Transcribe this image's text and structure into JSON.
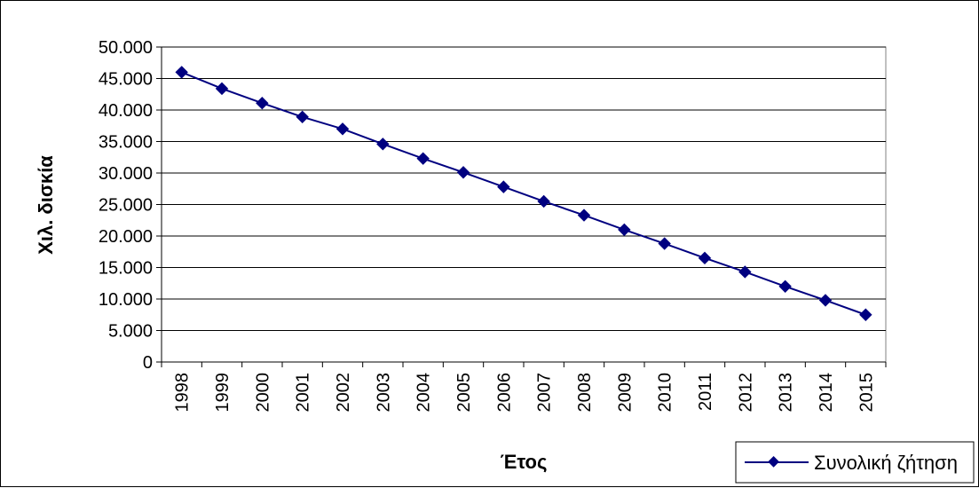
{
  "chart_data": {
    "type": "line",
    "xlabel": "Έτος",
    "ylabel": "Χιλ. δισκία",
    "ylim": [
      0,
      50000
    ],
    "yticks": [
      "0",
      "5.000",
      "10.000",
      "15.000",
      "20.000",
      "25.000",
      "30.000",
      "35.000",
      "40.000",
      "45.000",
      "50.000"
    ],
    "categories": [
      "1998",
      "1999",
      "2000",
      "2001",
      "2002",
      "2003",
      "2004",
      "2005",
      "2006",
      "2007",
      "2008",
      "2009",
      "2010",
      "2011",
      "2012",
      "2013",
      "2014",
      "2015"
    ],
    "series": [
      {
        "name": "Συνολική ζήτηση",
        "color": "#000080",
        "marker": "diamond",
        "values": [
          46000,
          43400,
          41100,
          38900,
          37000,
          34600,
          32300,
          30100,
          27800,
          25500,
          23300,
          21000,
          18800,
          16500,
          14300,
          12000,
          9800,
          7500
        ]
      }
    ],
    "grid": true,
    "legend": "bottom-right"
  }
}
